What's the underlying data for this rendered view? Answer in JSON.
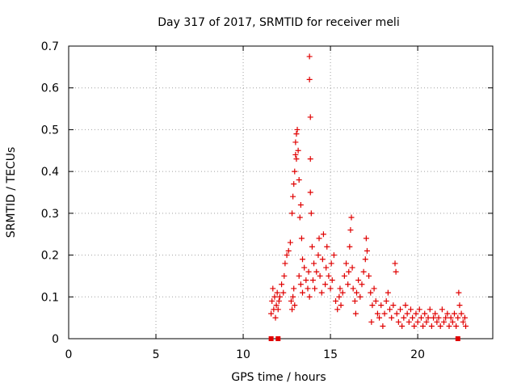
{
  "chart_data": {
    "type": "scatter",
    "title": "Day 317 of 2017, SRMTID for receiver meli",
    "xlabel": "GPS time / hours",
    "ylabel": "SRMTID / TECUs",
    "xlim": [
      0,
      24.3
    ],
    "ylim": [
      0,
      0.7
    ],
    "xticks": [
      0,
      5,
      10,
      15,
      20
    ],
    "xtick_labels": [
      "0",
      "5",
      "10",
      "15",
      "20"
    ],
    "yticks": [
      0,
      0.1,
      0.2,
      0.3,
      0.4,
      0.5,
      0.6,
      0.7
    ],
    "ytick_labels": [
      "0",
      "0.1",
      "0.2",
      "0.3",
      "0.4",
      "0.5",
      "0.6",
      "0.7"
    ],
    "grid": true,
    "marker": "plus",
    "marker_color": "#e00000",
    "series": [
      {
        "name": "SRMTID",
        "points": [
          [
            11.6,
            0.0
          ],
          [
            12.0,
            0.0
          ],
          [
            22.3,
            0.0
          ],
          [
            11.6,
            0.06
          ],
          [
            11.65,
            0.09
          ],
          [
            11.7,
            0.12
          ],
          [
            11.75,
            0.07
          ],
          [
            11.8,
            0.1
          ],
          [
            11.85,
            0.05
          ],
          [
            11.9,
            0.08
          ],
          [
            11.95,
            0.11
          ],
          [
            12.0,
            0.07
          ],
          [
            12.05,
            0.09
          ],
          [
            12.1,
            0.1
          ],
          [
            12.2,
            0.13
          ],
          [
            12.3,
            0.11
          ],
          [
            12.35,
            0.15
          ],
          [
            12.4,
            0.18
          ],
          [
            12.5,
            0.2
          ],
          [
            12.6,
            0.21
          ],
          [
            12.7,
            0.23
          ],
          [
            12.75,
            0.09
          ],
          [
            12.8,
            0.07
          ],
          [
            12.85,
            0.1
          ],
          [
            12.9,
            0.12
          ],
          [
            12.95,
            0.08
          ],
          [
            12.8,
            0.3
          ],
          [
            12.85,
            0.34
          ],
          [
            12.9,
            0.37
          ],
          [
            12.95,
            0.4
          ],
          [
            13.0,
            0.44
          ],
          [
            13.0,
            0.47
          ],
          [
            13.05,
            0.49
          ],
          [
            13.05,
            0.43
          ],
          [
            13.1,
            0.5
          ],
          [
            13.15,
            0.45
          ],
          [
            13.2,
            0.38
          ],
          [
            13.25,
            0.29
          ],
          [
            13.3,
            0.32
          ],
          [
            13.35,
            0.24
          ],
          [
            13.4,
            0.19
          ],
          [
            13.2,
            0.15
          ],
          [
            13.3,
            0.13
          ],
          [
            13.4,
            0.11
          ],
          [
            13.5,
            0.17
          ],
          [
            13.6,
            0.14
          ],
          [
            13.7,
            0.12
          ],
          [
            13.75,
            0.16
          ],
          [
            13.8,
            0.1
          ],
          [
            13.85,
            0.35
          ],
          [
            13.9,
            0.3
          ],
          [
            13.85,
            0.43
          ],
          [
            13.85,
            0.53
          ],
          [
            13.8,
            0.62
          ],
          [
            13.8,
            0.675
          ],
          [
            13.95,
            0.22
          ],
          [
            14.0,
            0.14
          ],
          [
            14.05,
            0.18
          ],
          [
            14.1,
            0.12
          ],
          [
            14.2,
            0.16
          ],
          [
            14.3,
            0.2
          ],
          [
            14.35,
            0.24
          ],
          [
            14.4,
            0.15
          ],
          [
            14.5,
            0.11
          ],
          [
            14.55,
            0.19
          ],
          [
            14.6,
            0.25
          ],
          [
            14.7,
            0.13
          ],
          [
            14.75,
            0.17
          ],
          [
            14.8,
            0.22
          ],
          [
            14.9,
            0.15
          ],
          [
            15.0,
            0.12
          ],
          [
            15.05,
            0.18
          ],
          [
            15.1,
            0.14
          ],
          [
            15.2,
            0.2
          ],
          [
            15.3,
            0.09
          ],
          [
            15.4,
            0.07
          ],
          [
            15.5,
            0.1
          ],
          [
            15.55,
            0.12
          ],
          [
            15.6,
            0.08
          ],
          [
            15.7,
            0.11
          ],
          [
            15.8,
            0.15
          ],
          [
            15.9,
            0.18
          ],
          [
            16.0,
            0.13
          ],
          [
            16.05,
            0.16
          ],
          [
            16.1,
            0.22
          ],
          [
            16.15,
            0.26
          ],
          [
            16.2,
            0.29
          ],
          [
            16.25,
            0.17
          ],
          [
            16.3,
            0.12
          ],
          [
            16.4,
            0.09
          ],
          [
            16.45,
            0.06
          ],
          [
            16.5,
            0.11
          ],
          [
            16.6,
            0.14
          ],
          [
            16.7,
            0.1
          ],
          [
            16.8,
            0.13
          ],
          [
            16.9,
            0.16
          ],
          [
            17.0,
            0.19
          ],
          [
            17.05,
            0.24
          ],
          [
            17.1,
            0.21
          ],
          [
            17.2,
            0.15
          ],
          [
            17.3,
            0.11
          ],
          [
            17.35,
            0.04
          ],
          [
            17.4,
            0.08
          ],
          [
            17.5,
            0.12
          ],
          [
            17.6,
            0.09
          ],
          [
            17.7,
            0.06
          ],
          [
            17.8,
            0.05
          ],
          [
            17.9,
            0.08
          ],
          [
            18.0,
            0.03
          ],
          [
            18.1,
            0.06
          ],
          [
            18.2,
            0.09
          ],
          [
            18.3,
            0.11
          ],
          [
            18.4,
            0.07
          ],
          [
            18.5,
            0.05
          ],
          [
            18.6,
            0.08
          ],
          [
            18.7,
            0.18
          ],
          [
            18.75,
            0.16
          ],
          [
            18.8,
            0.06
          ],
          [
            18.9,
            0.04
          ],
          [
            19.0,
            0.07
          ],
          [
            19.1,
            0.03
          ],
          [
            19.2,
            0.05
          ],
          [
            19.3,
            0.08
          ],
          [
            19.4,
            0.06
          ],
          [
            19.5,
            0.04
          ],
          [
            19.6,
            0.07
          ],
          [
            19.7,
            0.05
          ],
          [
            19.8,
            0.03
          ],
          [
            19.9,
            0.06
          ],
          [
            20.0,
            0.04
          ],
          [
            20.1,
            0.07
          ],
          [
            20.2,
            0.05
          ],
          [
            20.3,
            0.03
          ],
          [
            20.4,
            0.06
          ],
          [
            20.5,
            0.04
          ],
          [
            20.6,
            0.05
          ],
          [
            20.7,
            0.07
          ],
          [
            20.8,
            0.03
          ],
          [
            20.9,
            0.05
          ],
          [
            21.0,
            0.06
          ],
          [
            21.1,
            0.04
          ],
          [
            21.2,
            0.05
          ],
          [
            21.3,
            0.03
          ],
          [
            21.4,
            0.07
          ],
          [
            21.5,
            0.04
          ],
          [
            21.6,
            0.05
          ],
          [
            21.7,
            0.06
          ],
          [
            21.8,
            0.03
          ],
          [
            21.9,
            0.05
          ],
          [
            22.0,
            0.04
          ],
          [
            22.1,
            0.06
          ],
          [
            22.2,
            0.03
          ],
          [
            22.3,
            0.05
          ],
          [
            22.35,
            0.11
          ],
          [
            22.4,
            0.08
          ],
          [
            22.5,
            0.06
          ],
          [
            22.6,
            0.04
          ],
          [
            22.7,
            0.05
          ],
          [
            22.75,
            0.03
          ]
        ]
      }
    ]
  }
}
